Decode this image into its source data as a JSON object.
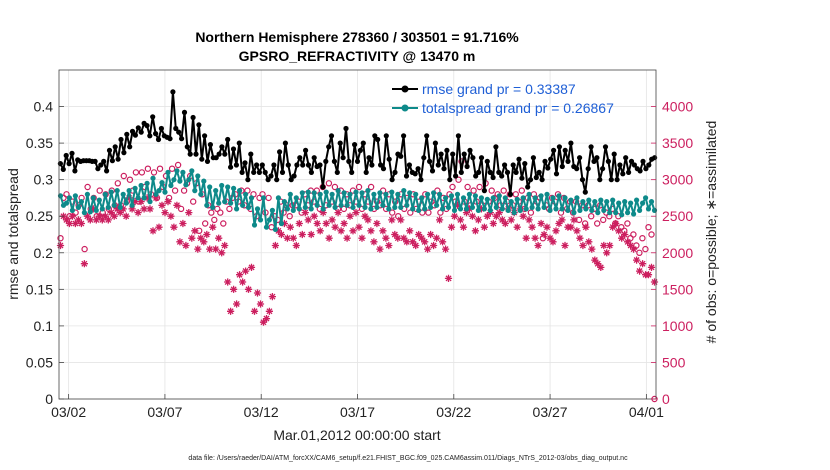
{
  "chart_data": {
    "type": "line",
    "title": "Northern Hemisphere 278360 / 303501 = 91.716%",
    "subtitle": "GPSRO_REFRACTIVITY @ 13470 m",
    "xlabel": "Mar.01,2012 00:00:00 start",
    "ylabel_left": "rmse and totalspread",
    "ylabel_right": "# of obs: o=possible; ∗=assimilated",
    "footnote": "data file: /Users/raeder/DAI/ATM_forcXX/CAM6_setup/f.e21.FHIST_BGC.f09_025.CAM6assim.011/Diags_NTrS_2012-03/obs_diag_output.nc",
    "x_range": [
      0.5,
      31.5
    ],
    "ylim_left": [
      0,
      0.45
    ],
    "ylim_right": [
      0,
      4500
    ],
    "x_ticks": [
      {
        "pos": 1,
        "label": "03/02"
      },
      {
        "pos": 6,
        "label": "03/07"
      },
      {
        "pos": 11,
        "label": "03/12"
      },
      {
        "pos": 16,
        "label": "03/17"
      },
      {
        "pos": 21,
        "label": "03/22"
      },
      {
        "pos": 26,
        "label": "03/27"
      },
      {
        "pos": 31,
        "label": "04/01"
      }
    ],
    "y_ticks_left": [
      "0",
      "0.05",
      "0.1",
      "0.15",
      "0.2",
      "0.25",
      "0.3",
      "0.35",
      "0.4"
    ],
    "y_ticks_right": [
      "0",
      "500",
      "1000",
      "1500",
      "2000",
      "2500",
      "3000",
      "3500",
      "4000"
    ],
    "colors": {
      "rmse": "#000000",
      "spread": "#0e8a8a",
      "obs": "#cc1f5f",
      "legend_text": "#1f5fd6"
    },
    "series": [
      {
        "name": "rmse grand pr = 0.33387",
        "key": "rmse",
        "values": [
          0.322,
          0.314,
          0.333,
          0.322,
          0.336,
          0.312,
          0.327,
          0.325,
          0.326,
          0.326,
          0.326,
          0.325,
          0.325,
          0.315,
          0.32,
          0.325,
          0.312,
          0.34,
          0.326,
          0.345,
          0.328,
          0.355,
          0.337,
          0.362,
          0.345,
          0.366,
          0.361,
          0.371,
          0.365,
          0.377,
          0.374,
          0.36,
          0.386,
          0.363,
          0.355,
          0.37,
          0.36,
          0.358,
          0.356,
          0.42,
          0.37,
          0.365,
          0.356,
          0.392,
          0.345,
          0.335,
          0.385,
          0.335,
          0.375,
          0.328,
          0.36,
          0.325,
          0.348,
          0.33,
          0.33,
          0.335,
          0.345,
          0.335,
          0.355,
          0.317,
          0.342,
          0.32,
          0.35,
          0.31,
          0.323,
          0.3,
          0.335,
          0.31,
          0.32,
          0.31,
          0.32,
          0.31,
          0.3,
          0.305,
          0.32,
          0.3,
          0.338,
          0.31,
          0.35,
          0.32,
          0.3,
          0.305,
          0.32,
          0.33,
          0.32,
          0.34,
          0.32,
          0.31,
          0.33,
          0.318,
          0.32,
          0.29,
          0.325,
          0.345,
          0.36,
          0.325,
          0.31,
          0.35,
          0.33,
          0.37,
          0.325,
          0.31,
          0.348,
          0.325,
          0.34,
          0.35,
          0.31,
          0.33,
          0.32,
          0.36,
          0.355,
          0.32,
          0.315,
          0.36,
          0.328,
          0.3,
          0.31,
          0.335,
          0.332,
          0.36,
          0.305,
          0.32,
          0.31,
          0.308,
          0.315,
          0.3,
          0.33,
          0.36,
          0.325,
          0.312,
          0.35,
          0.32,
          0.335,
          0.315,
          0.34,
          0.3,
          0.335,
          0.305,
          0.36,
          0.31,
          0.335,
          0.318,
          0.34,
          0.33,
          0.305,
          0.31,
          0.33,
          0.285,
          0.325,
          0.31,
          0.303,
          0.345,
          0.31,
          0.305,
          0.32,
          0.31,
          0.28,
          0.32,
          0.31,
          0.328,
          0.302,
          0.322,
          0.29,
          0.3,
          0.33,
          0.303,
          0.31,
          0.3,
          0.325,
          0.316,
          0.328,
          0.34,
          0.308,
          0.345,
          0.318,
          0.34,
          0.325,
          0.35,
          0.318,
          0.315,
          0.33,
          0.3,
          0.283,
          0.315,
          0.345,
          0.325,
          0.33,
          0.3,
          0.315,
          0.345,
          0.325,
          0.3,
          0.335,
          0.3,
          0.32,
          0.308,
          0.33,
          0.31,
          0.325,
          0.32,
          0.315,
          0.312,
          0.325,
          0.315,
          0.32,
          0.328,
          0.33
        ]
      },
      {
        "name": "totalspread grand pr = 0.26867",
        "key": "spread",
        "values": [
          0.278,
          0.265,
          0.268,
          0.275,
          0.258,
          0.278,
          0.262,
          0.27,
          0.255,
          0.28,
          0.256,
          0.275,
          0.258,
          0.272,
          0.26,
          0.28,
          0.262,
          0.283,
          0.265,
          0.285,
          0.262,
          0.28,
          0.268,
          0.285,
          0.265,
          0.288,
          0.275,
          0.292,
          0.275,
          0.295,
          0.27,
          0.302,
          0.28,
          0.285,
          0.296,
          0.283,
          0.31,
          0.292,
          0.3,
          0.312,
          0.298,
          0.31,
          0.293,
          0.3,
          0.312,
          0.285,
          0.305,
          0.28,
          0.298,
          0.265,
          0.29,
          0.262,
          0.285,
          0.268,
          0.292,
          0.27,
          0.29,
          0.268,
          0.288,
          0.26,
          0.285,
          0.265,
          0.28,
          0.262,
          0.275,
          0.238,
          0.26,
          0.245,
          0.275,
          0.235,
          0.245,
          0.258,
          0.232,
          0.275,
          0.24,
          0.27,
          0.26,
          0.28,
          0.258,
          0.275,
          0.26,
          0.282,
          0.262,
          0.283,
          0.26,
          0.282,
          0.265,
          0.28,
          0.26,
          0.283,
          0.265,
          0.28,
          0.262,
          0.285,
          0.265,
          0.282,
          0.265,
          0.28,
          0.262,
          0.283,
          0.265,
          0.282,
          0.262,
          0.285,
          0.26,
          0.28,
          0.262,
          0.282,
          0.265,
          0.28,
          0.26,
          0.283,
          0.262,
          0.28,
          0.262,
          0.285,
          0.265,
          0.282,
          0.26,
          0.28,
          0.258,
          0.275,
          0.26,
          0.28,
          0.262,
          0.282,
          0.265,
          0.28,
          0.26,
          0.275,
          0.262,
          0.278,
          0.258,
          0.28,
          0.26,
          0.275,
          0.26,
          0.28,
          0.262,
          0.278,
          0.258,
          0.275,
          0.26,
          0.273,
          0.258,
          0.275,
          0.262,
          0.278,
          0.26,
          0.275,
          0.258,
          0.27,
          0.255,
          0.273,
          0.258,
          0.275,
          0.26,
          0.28,
          0.262,
          0.275,
          0.26,
          0.278,
          0.262,
          0.28,
          0.258,
          0.275,
          0.26,
          0.278,
          0.26,
          0.275,
          0.258,
          0.272,
          0.255,
          0.275,
          0.258,
          0.27,
          0.26,
          0.272,
          0.258,
          0.27,
          0.255,
          0.272,
          0.258,
          0.27,
          0.255,
          0.272,
          0.255,
          0.268,
          0.252,
          0.27,
          0.255,
          0.268,
          0.253,
          0.272,
          0.258,
          0.268,
          0.275,
          0.26,
          0.27,
          0.258
        ]
      },
      {
        "name": "possible",
        "key": "obs_possible",
        "marker": "o",
        "values": [
          2200,
          2750,
          2800,
          2500,
          2700,
          2550,
          2650,
          2750,
          2050,
          2900,
          2600,
          2750,
          2500,
          2850,
          2550,
          2800,
          2600,
          2850,
          2650,
          2950,
          2650,
          3050,
          2700,
          3000,
          2850,
          3100,
          2700,
          3100,
          2900,
          3150,
          2800,
          3100,
          2750,
          3150,
          2900,
          3050,
          2750,
          3150,
          2850,
          3200,
          2600,
          2850,
          2950,
          3050,
          2700,
          2950,
          2300,
          2800,
          2400,
          2650,
          2550,
          2450,
          2600,
          2550,
          2400,
          2700,
          2600,
          2750,
          2800,
          2700,
          2850,
          2650,
          2850,
          2600,
          2800,
          2500,
          2750,
          2800,
          2550,
          2750,
          2350,
          2500,
          2450,
          2700,
          2550,
          2650,
          2500,
          2650,
          2650,
          2700,
          2550,
          2800,
          2650,
          2850,
          2700,
          2850,
          2600,
          2900,
          2650,
          2950,
          2700,
          2900,
          2600,
          2850,
          2600,
          2800,
          2650,
          2850,
          2700,
          2900,
          2600,
          2800,
          2700,
          2900,
          2600,
          2700,
          2650,
          2850,
          2600,
          2800,
          2550,
          2700,
          2500,
          2800,
          2600,
          2750,
          2550,
          2800,
          2600,
          2700,
          2550,
          2800,
          2550,
          2700,
          2650,
          2850,
          2550,
          2750,
          2600,
          2800,
          2900,
          2700,
          3000,
          3250,
          2700,
          2900,
          2650,
          2850,
          2700,
          2900,
          2650,
          2950,
          2700,
          2850,
          2750,
          2800,
          2650,
          2850,
          2700,
          2800,
          2650,
          2800,
          2700,
          2850,
          2600,
          2750,
          2550,
          2800,
          2700,
          2750,
          2200,
          2650,
          2600,
          2750,
          2700,
          2800,
          2550,
          2750,
          2600,
          2700,
          2550,
          2700,
          2450,
          2650,
          2400,
          2650,
          2500,
          2600,
          2400,
          2650,
          2450,
          2550,
          2500,
          2600,
          2400,
          2500,
          2350,
          2300,
          2400,
          2200,
          2250,
          2100,
          2000,
          2200,
          2050,
          2350,
          2250,
          0
        ]
      },
      {
        "name": "assimilated",
        "key": "obs_assimilated",
        "marker": "*",
        "values": [
          2100,
          2500,
          2450,
          2400,
          2500,
          2400,
          2450,
          2400,
          1850,
          2500,
          2450,
          2600,
          2450,
          2500,
          2450,
          2500,
          2450,
          2550,
          2500,
          2600,
          2550,
          2600,
          2500,
          2750,
          2600,
          2700,
          2550,
          2700,
          2600,
          2750,
          2600,
          2300,
          2750,
          2350,
          2650,
          2550,
          2700,
          2500,
          2350,
          2650,
          2150,
          2400,
          2100,
          2550,
          2200,
          2300,
          2050,
          2200,
          2150,
          2250,
          2050,
          2350,
          2050,
          2200,
          2000,
          2100,
          1600,
          1200,
          1500,
          1300,
          1700,
          1600,
          1750,
          1500,
          1800,
          1200,
          1450,
          1300,
          1050,
          1100,
          1200,
          1400,
          2100,
          2300,
          2250,
          2400,
          2200,
          2350,
          2200,
          2100,
          2400,
          2250,
          2550,
          2450,
          2250,
          2500,
          2400,
          2300,
          2550,
          2400,
          2200,
          2450,
          2350,
          2550,
          2300,
          2400,
          2200,
          2500,
          2300,
          2550,
          2350,
          2200,
          2500,
          2450,
          2300,
          2150,
          2400,
          2050,
          2300,
          2200,
          2100,
          2450,
          2250,
          2200,
          2450,
          2200,
          2150,
          2300,
          2150,
          2100,
          2250,
          2200,
          2150,
          2050,
          2250,
          2100,
          2200,
          2450,
          2150,
          2050,
          1650,
          2350,
          2500,
          2650,
          2450,
          2350,
          2550,
          2600,
          2500,
          2300,
          2450,
          2600,
          2350,
          2500,
          2550,
          2400,
          2500,
          2550,
          2450,
          2400,
          2600,
          2450,
          2550,
          2350,
          2600,
          2500,
          2200,
          2450,
          2350,
          2200,
          2100,
          2400,
          2250,
          2350,
          2200,
          2150,
          2300,
          2400,
          2450,
          2100,
          2350,
          2350,
          2450,
          2300,
          2200,
          2100,
          2350,
          2150,
          2050,
          1900,
          1850,
          1800,
          2100,
          2000,
          2100,
          2350,
          2400,
          2300,
          2200,
          2250,
          2150,
          2100,
          2050,
          1900,
          1750,
          1850,
          1700,
          1700,
          1800,
          1600
        ]
      }
    ]
  }
}
